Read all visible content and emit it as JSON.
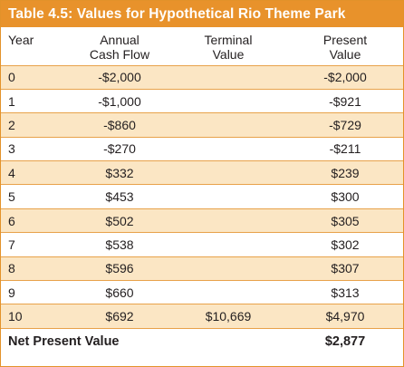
{
  "table": {
    "title": "Table 4.5: Values for Hypothetical Rio Theme Park",
    "headers": {
      "year": "Year",
      "cash_flow_line1": "Annual",
      "cash_flow_line2": "Cash Flow",
      "terminal_line1": "Terminal",
      "terminal_line2": "Value",
      "present_line1": "Present",
      "present_line2": "Value"
    },
    "rows": [
      {
        "year": "0",
        "cash_flow": "-$2,000",
        "terminal_value": "",
        "present_value": "-$2,000"
      },
      {
        "year": "1",
        "cash_flow": "-$1,000",
        "terminal_value": "",
        "present_value": "-$921"
      },
      {
        "year": "2",
        "cash_flow": "-$860",
        "terminal_value": "",
        "present_value": "-$729"
      },
      {
        "year": "3",
        "cash_flow": "-$270",
        "terminal_value": "",
        "present_value": "-$211"
      },
      {
        "year": "4",
        "cash_flow": "$332",
        "terminal_value": "",
        "present_value": "$239"
      },
      {
        "year": "5",
        "cash_flow": "$453",
        "terminal_value": "",
        "present_value": "$300"
      },
      {
        "year": "6",
        "cash_flow": "$502",
        "terminal_value": "",
        "present_value": "$305"
      },
      {
        "year": "7",
        "cash_flow": "$538",
        "terminal_value": "",
        "present_value": "$302"
      },
      {
        "year": "8",
        "cash_flow": "$596",
        "terminal_value": "",
        "present_value": "$307"
      },
      {
        "year": "9",
        "cash_flow": "$660",
        "terminal_value": "",
        "present_value": "$313"
      },
      {
        "year": "10",
        "cash_flow": "$692",
        "terminal_value": "$10,669",
        "present_value": "$4,970"
      }
    ],
    "footer": {
      "label": "Net Present Value",
      "value": "$2,877"
    },
    "colors": {
      "title_bg": "#e8922b",
      "shaded_row": "#fbe6c4",
      "rule": "#e8a24a"
    }
  }
}
